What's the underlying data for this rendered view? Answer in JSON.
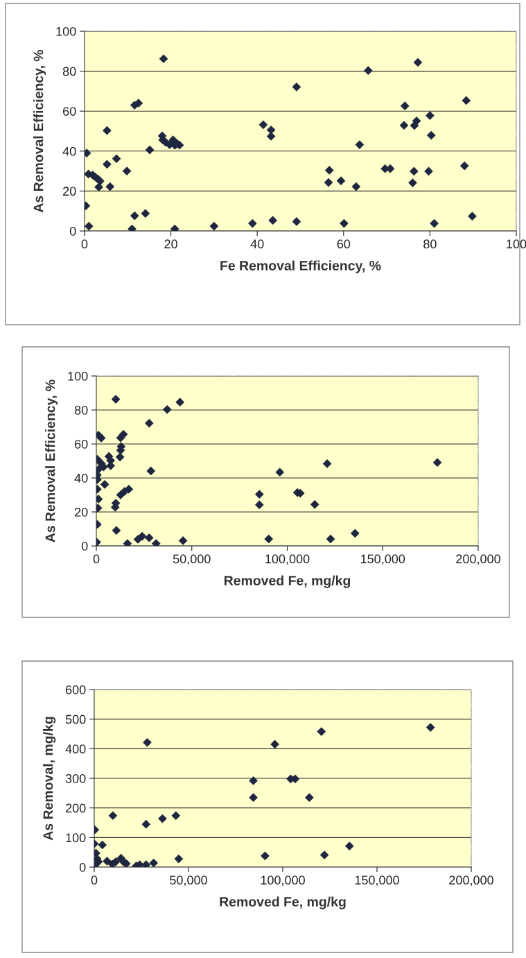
{
  "chart_data": [
    {
      "type": "scatter",
      "xlabel": "Fe Removal Efficiency, %",
      "ylabel": "As Removal Efficiency, %",
      "color": "#1f2740",
      "marker": "diamond",
      "grid": "y",
      "xlim": [
        0,
        100
      ],
      "ylim": [
        0,
        100
      ],
      "xticks": [
        0,
        20,
        40,
        60,
        80,
        100
      ],
      "yticks": [
        0,
        20,
        40,
        60,
        80,
        100
      ],
      "x": [
        0.5,
        0.3,
        1,
        0.9,
        1.9,
        2.5,
        3.1,
        3.6,
        3.3,
        5.2,
        5.2,
        5.9,
        7.4,
        9.8,
        11,
        11.6,
        11.6,
        12.5,
        14.1,
        15.1,
        18.3,
        18,
        18.1,
        18.8,
        19.7,
        20.5,
        20.9,
        21.4,
        22,
        20.9,
        30,
        38.9,
        41.4,
        43.2,
        43.2,
        43.6,
        49.1,
        49.1,
        56.7,
        56.5,
        59.4,
        60.1,
        62.9,
        63.7,
        65.7,
        69.6,
        70.8,
        74.2,
        74,
        76.4,
        76.9,
        77.2,
        76.3,
        76,
        79.7,
        80,
        80.3,
        81,
        88.4,
        88,
        89.8
      ],
      "values": [
        39,
        12.6,
        2.4,
        28.5,
        28,
        27,
        26,
        25,
        22,
        50.3,
        33.4,
        22.2,
        36.2,
        30,
        1,
        7.6,
        63,
        64,
        8.8,
        40.6,
        86.2,
        47.6,
        45.6,
        44.4,
        43.2,
        45.6,
        42.9,
        43.8,
        43,
        1,
        2.4,
        3.8,
        53.2,
        50.6,
        47.4,
        5.3,
        72.1,
        4.7,
        30.4,
        24.3,
        25.1,
        3.8,
        22.2,
        43.2,
        80.3,
        31.2,
        31.2,
        62.6,
        52.9,
        52.8,
        55.1,
        84.4,
        29.9,
        24.1,
        29.9,
        57.8,
        47.9,
        3.8,
        65.3,
        32.6,
        7.4
      ]
    },
    {
      "type": "scatter",
      "xlabel": "Removed Fe, mg/kg",
      "ylabel": "As Removal Efficiency, %",
      "color": "#1f2740",
      "marker": "diamond",
      "grid": "y",
      "xlim": [
        0,
        200000
      ],
      "ylim": [
        0,
        100
      ],
      "xticks": [
        0,
        {
          "value": 50000,
          "label": "50,000"
        },
        {
          "value": 100000,
          "label": "100,000"
        },
        {
          "value": 150000,
          "label": "150,000"
        },
        {
          "value": 200000,
          "label": "200,000"
        }
      ],
      "yticks": [
        0,
        20,
        40,
        60,
        80,
        100
      ],
      "x": [
        10200,
        43800,
        37100,
        27700,
        1100,
        2600,
        14200,
        12700,
        13000,
        12700,
        12400,
        6600,
        7500,
        7500,
        500,
        2600,
        3800,
        1100,
        500,
        500,
        28600,
        4400,
        500,
        17000,
        14800,
        12700,
        1100,
        800,
        10200,
        9900,
        500,
        10500,
        200,
        16300,
        21800,
        24000,
        27700,
        31300,
        45400,
        85400,
        85400,
        90300,
        96100,
        105300,
        106800,
        114400,
        120900,
        122700,
        135500,
        178600
      ],
      "values": [
        86.3,
        84.6,
        80.3,
        72.2,
        65.2,
        63.5,
        65.7,
        63.6,
        58.5,
        56.3,
        52.3,
        52.7,
        50.3,
        47.2,
        51,
        48.5,
        46.5,
        45,
        41.7,
        39,
        44.1,
        36.2,
        33.4,
        33.4,
        32.1,
        30,
        27.6,
        22.3,
        25.2,
        22.8,
        12.7,
        9.1,
        2.2,
        1.4,
        3.9,
        5.7,
        4.8,
        1.4,
        3.1,
        30.4,
        24.2,
        4.1,
        43.4,
        31.4,
        31,
        24.4,
        48.4,
        4.1,
        7.4,
        49.1
      ]
    },
    {
      "type": "scatter",
      "xlabel": "Removed Fe, mg/kg",
      "ylabel": "As Removal, mg/kg",
      "color": "#1f2740",
      "marker": "diamond",
      "grid": "y",
      "xlim": [
        0,
        200000
      ],
      "ylim": [
        0,
        600
      ],
      "xticks": [
        0,
        {
          "value": 50000,
          "label": "50,000"
        },
        {
          "value": 100000,
          "label": "100,000"
        },
        {
          "value": 150000,
          "label": "150,000"
        },
        {
          "value": 200000,
          "label": "200,000"
        }
      ],
      "yticks": [
        0,
        100,
        200,
        300,
        400,
        500,
        600
      ],
      "x": [
        178400,
        120500,
        28100,
        95800,
        104200,
        106600,
        84400,
        84400,
        114100,
        9900,
        43300,
        36200,
        27500,
        300,
        0,
        4300,
        135400,
        122100,
        90600,
        44800,
        900,
        1500,
        0,
        2200,
        6800,
        9600,
        11400,
        14200,
        15500,
        17000,
        22300,
        24100,
        27500,
        31500
      ],
      "values": [
        472,
        458,
        421,
        415,
        298,
        298,
        292,
        235,
        235,
        174,
        174,
        164,
        145,
        126,
        79,
        75,
        71,
        41,
        38,
        28,
        47,
        28,
        3,
        18,
        20,
        10,
        18,
        30,
        18,
        12,
        4,
        8,
        8,
        14
      ]
    }
  ]
}
